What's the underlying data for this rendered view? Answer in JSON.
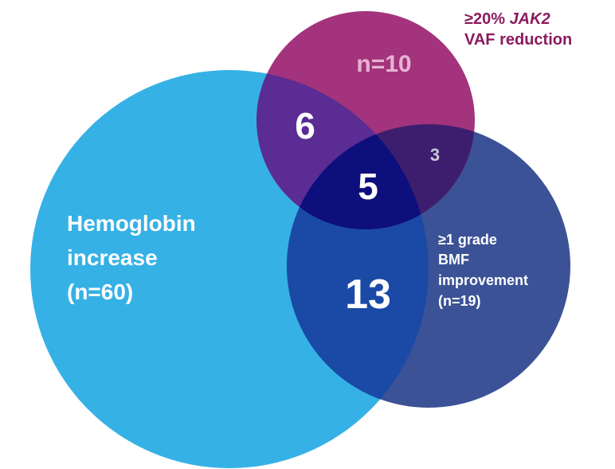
{
  "sets": {
    "hemoglobin": {
      "lines": [
        "Hemoglobin",
        "increase",
        "(n=60)"
      ]
    },
    "vaf": {
      "line1_prefix": "≥20% ",
      "line1_italic": "JAK2",
      "line2": "VAF reduction",
      "count": "n=10"
    },
    "bmf": {
      "lines": [
        "≥1 grade",
        "BMF",
        "improvement",
        "(n=19)"
      ]
    }
  },
  "regions": {
    "hemoglobin_vaf": 6,
    "all_three": 5,
    "vaf_bmf": 3,
    "hemoglobin_bmf": 13
  }
}
